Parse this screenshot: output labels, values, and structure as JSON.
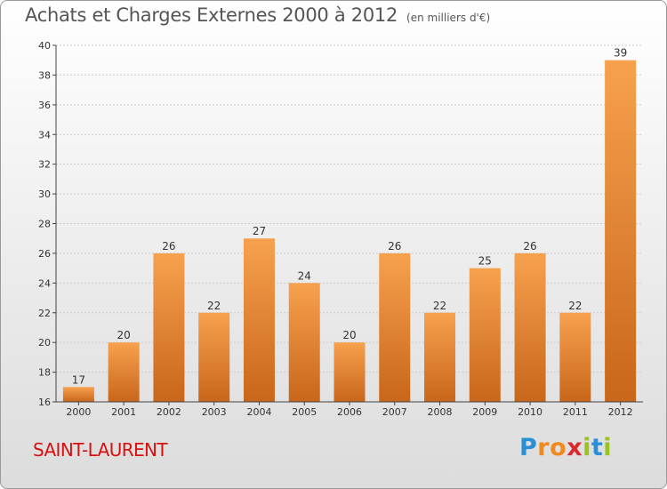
{
  "header": {
    "title": "Achats et Charges Externes 2000 à 2012",
    "subtitle": "(en milliers d'€)"
  },
  "footer": {
    "commune": "SAINT-LAURENT",
    "logo_letters": [
      "P",
      "r",
      "o",
      "x",
      "i",
      "t",
      "i"
    ],
    "logo_colors": [
      "#2a8fd6",
      "#f08a1c",
      "#f08a1c",
      "#d82a2a",
      "#9ac31c",
      "#2a8fd6",
      "#9ac31c"
    ]
  },
  "colors": {
    "bar_light": "#f7a14e",
    "bar_dark": "#c8661a",
    "axis": "#444444",
    "grid": "#cccccc",
    "text": "#333333"
  },
  "chart_data": {
    "type": "bar",
    "categories": [
      "2000",
      "2001",
      "2002",
      "2003",
      "2004",
      "2005",
      "2006",
      "2007",
      "2008",
      "2009",
      "2010",
      "2011",
      "2012"
    ],
    "values": [
      17,
      20,
      26,
      22,
      27,
      24,
      20,
      26,
      22,
      25,
      26,
      22,
      39
    ],
    "title": "Achats et Charges Externes 2000 à 2012",
    "subtitle": "(en milliers d'€)",
    "xlabel": "",
    "ylabel": "",
    "ylim": [
      16,
      40
    ],
    "yticks": [
      16,
      18,
      20,
      22,
      24,
      26,
      28,
      30,
      32,
      34,
      36,
      38,
      40
    ],
    "grid": true,
    "data_labels": true
  }
}
